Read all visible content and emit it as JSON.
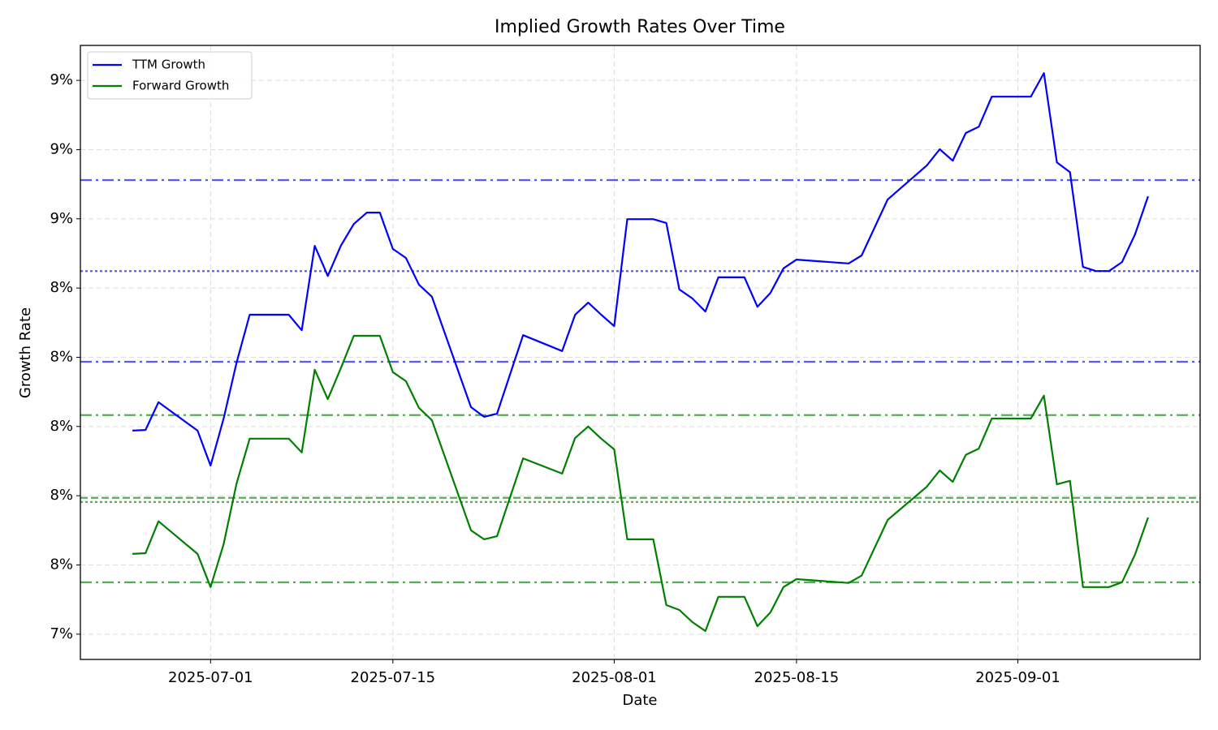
{
  "chart_data": {
    "type": "line",
    "title": "Implied Growth Rates Over Time",
    "xlabel": "Date",
    "ylabel": "Growth Rate",
    "x": [
      "2025-06-25",
      "2025-06-26",
      "2025-06-27",
      "2025-06-30",
      "2025-07-01",
      "2025-07-02",
      "2025-07-03",
      "2025-07-04",
      "2025-07-07",
      "2025-07-08",
      "2025-07-09",
      "2025-07-10",
      "2025-07-11",
      "2025-07-12",
      "2025-07-13",
      "2025-07-14",
      "2025-07-15",
      "2025-07-16",
      "2025-07-17",
      "2025-07-18",
      "2025-07-21",
      "2025-07-22",
      "2025-07-23",
      "2025-07-25",
      "2025-07-28",
      "2025-07-29",
      "2025-07-30",
      "2025-07-31",
      "2025-08-01",
      "2025-08-02",
      "2025-08-04",
      "2025-08-05",
      "2025-08-06",
      "2025-08-07",
      "2025-08-08",
      "2025-08-09",
      "2025-08-11",
      "2025-08-12",
      "2025-08-13",
      "2025-08-14",
      "2025-08-15",
      "2025-08-19",
      "2025-08-20",
      "2025-08-22",
      "2025-08-25",
      "2025-08-26",
      "2025-08-27",
      "2025-08-28",
      "2025-08-29",
      "2025-08-30",
      "2025-09-02",
      "2025-09-03",
      "2025-09-04",
      "2025-09-05",
      "2025-09-06",
      "2025-09-07",
      "2025-09-08",
      "2025-09-09",
      "2025-09-10",
      "2025-09-11"
    ],
    "series": [
      {
        "name": "TTM Growth",
        "color": "#0000ff",
        "values": [
          7.988,
          7.99,
          8.07,
          7.988,
          7.887,
          8.023,
          8.185,
          8.323,
          8.323,
          8.278,
          8.522,
          8.435,
          8.522,
          8.585,
          8.618,
          8.618,
          8.513,
          8.487,
          8.41,
          8.375,
          8.056,
          8.028,
          8.037,
          8.264,
          8.218,
          8.323,
          8.358,
          8.323,
          8.29,
          8.599,
          8.599,
          8.588,
          8.396,
          8.37,
          8.332,
          8.431,
          8.431,
          8.346,
          8.386,
          8.457,
          8.482,
          8.471,
          8.494,
          8.656,
          8.754,
          8.801,
          8.768,
          8.848,
          8.866,
          8.953,
          8.953,
          9.021,
          8.763,
          8.735,
          8.461,
          8.449,
          8.449,
          8.475,
          8.555,
          8.665
        ]
      },
      {
        "name": "Forward Growth",
        "color": "#008000",
        "values": [
          7.632,
          7.634,
          7.726,
          7.632,
          7.536,
          7.66,
          7.836,
          7.965,
          7.965,
          7.925,
          8.164,
          8.079,
          8.168,
          8.262,
          8.262,
          8.262,
          8.157,
          8.131,
          8.054,
          8.018,
          7.7,
          7.674,
          7.683,
          7.908,
          7.864,
          7.967,
          8.0,
          7.965,
          7.934,
          7.674,
          7.674,
          7.484,
          7.47,
          7.435,
          7.409,
          7.508,
          7.508,
          7.423,
          7.463,
          7.536,
          7.559,
          7.548,
          7.569,
          7.73,
          7.826,
          7.873,
          7.84,
          7.918,
          7.936,
          8.023,
          8.023,
          8.089,
          7.833,
          7.843,
          7.536,
          7.536,
          7.536,
          7.55,
          7.63,
          7.737
        ]
      }
    ],
    "reference_lines": [
      {
        "value": 8.712,
        "color": "#0000ff",
        "style": "dashdot"
      },
      {
        "value": 8.449,
        "color": "#0000ff",
        "style": "dotted"
      },
      {
        "value": 8.187,
        "color": "#0000ff",
        "style": "dashdot"
      },
      {
        "value": 8.033,
        "color": "#008000",
        "style": "dashdot"
      },
      {
        "value": 7.794,
        "color": "#008000",
        "style": "dashed"
      },
      {
        "value": 7.782,
        "color": "#008000",
        "style": "dotted"
      },
      {
        "value": 7.55,
        "color": "#008000",
        "style": "dashdot"
      }
    ],
    "xlim": [
      "2025-06-21",
      "2025-09-15"
    ],
    "xticks": [
      "2025-07-01",
      "2025-07-15",
      "2025-08-01",
      "2025-08-15",
      "2025-09-01"
    ],
    "ylim": [
      7.327,
      9.101
    ],
    "yticks": [
      {
        "value": 7.4,
        "label": "7%"
      },
      {
        "value": 7.6,
        "label": "8%"
      },
      {
        "value": 7.8,
        "label": "8%"
      },
      {
        "value": 8.0,
        "label": "8%"
      },
      {
        "value": 8.2,
        "label": "8%"
      },
      {
        "value": 8.4,
        "label": "8%"
      },
      {
        "value": 8.6,
        "label": "9%"
      },
      {
        "value": 8.8,
        "label": "9%"
      },
      {
        "value": 9.0,
        "label": "9%"
      }
    ],
    "grid": true,
    "legend": "upper left"
  }
}
